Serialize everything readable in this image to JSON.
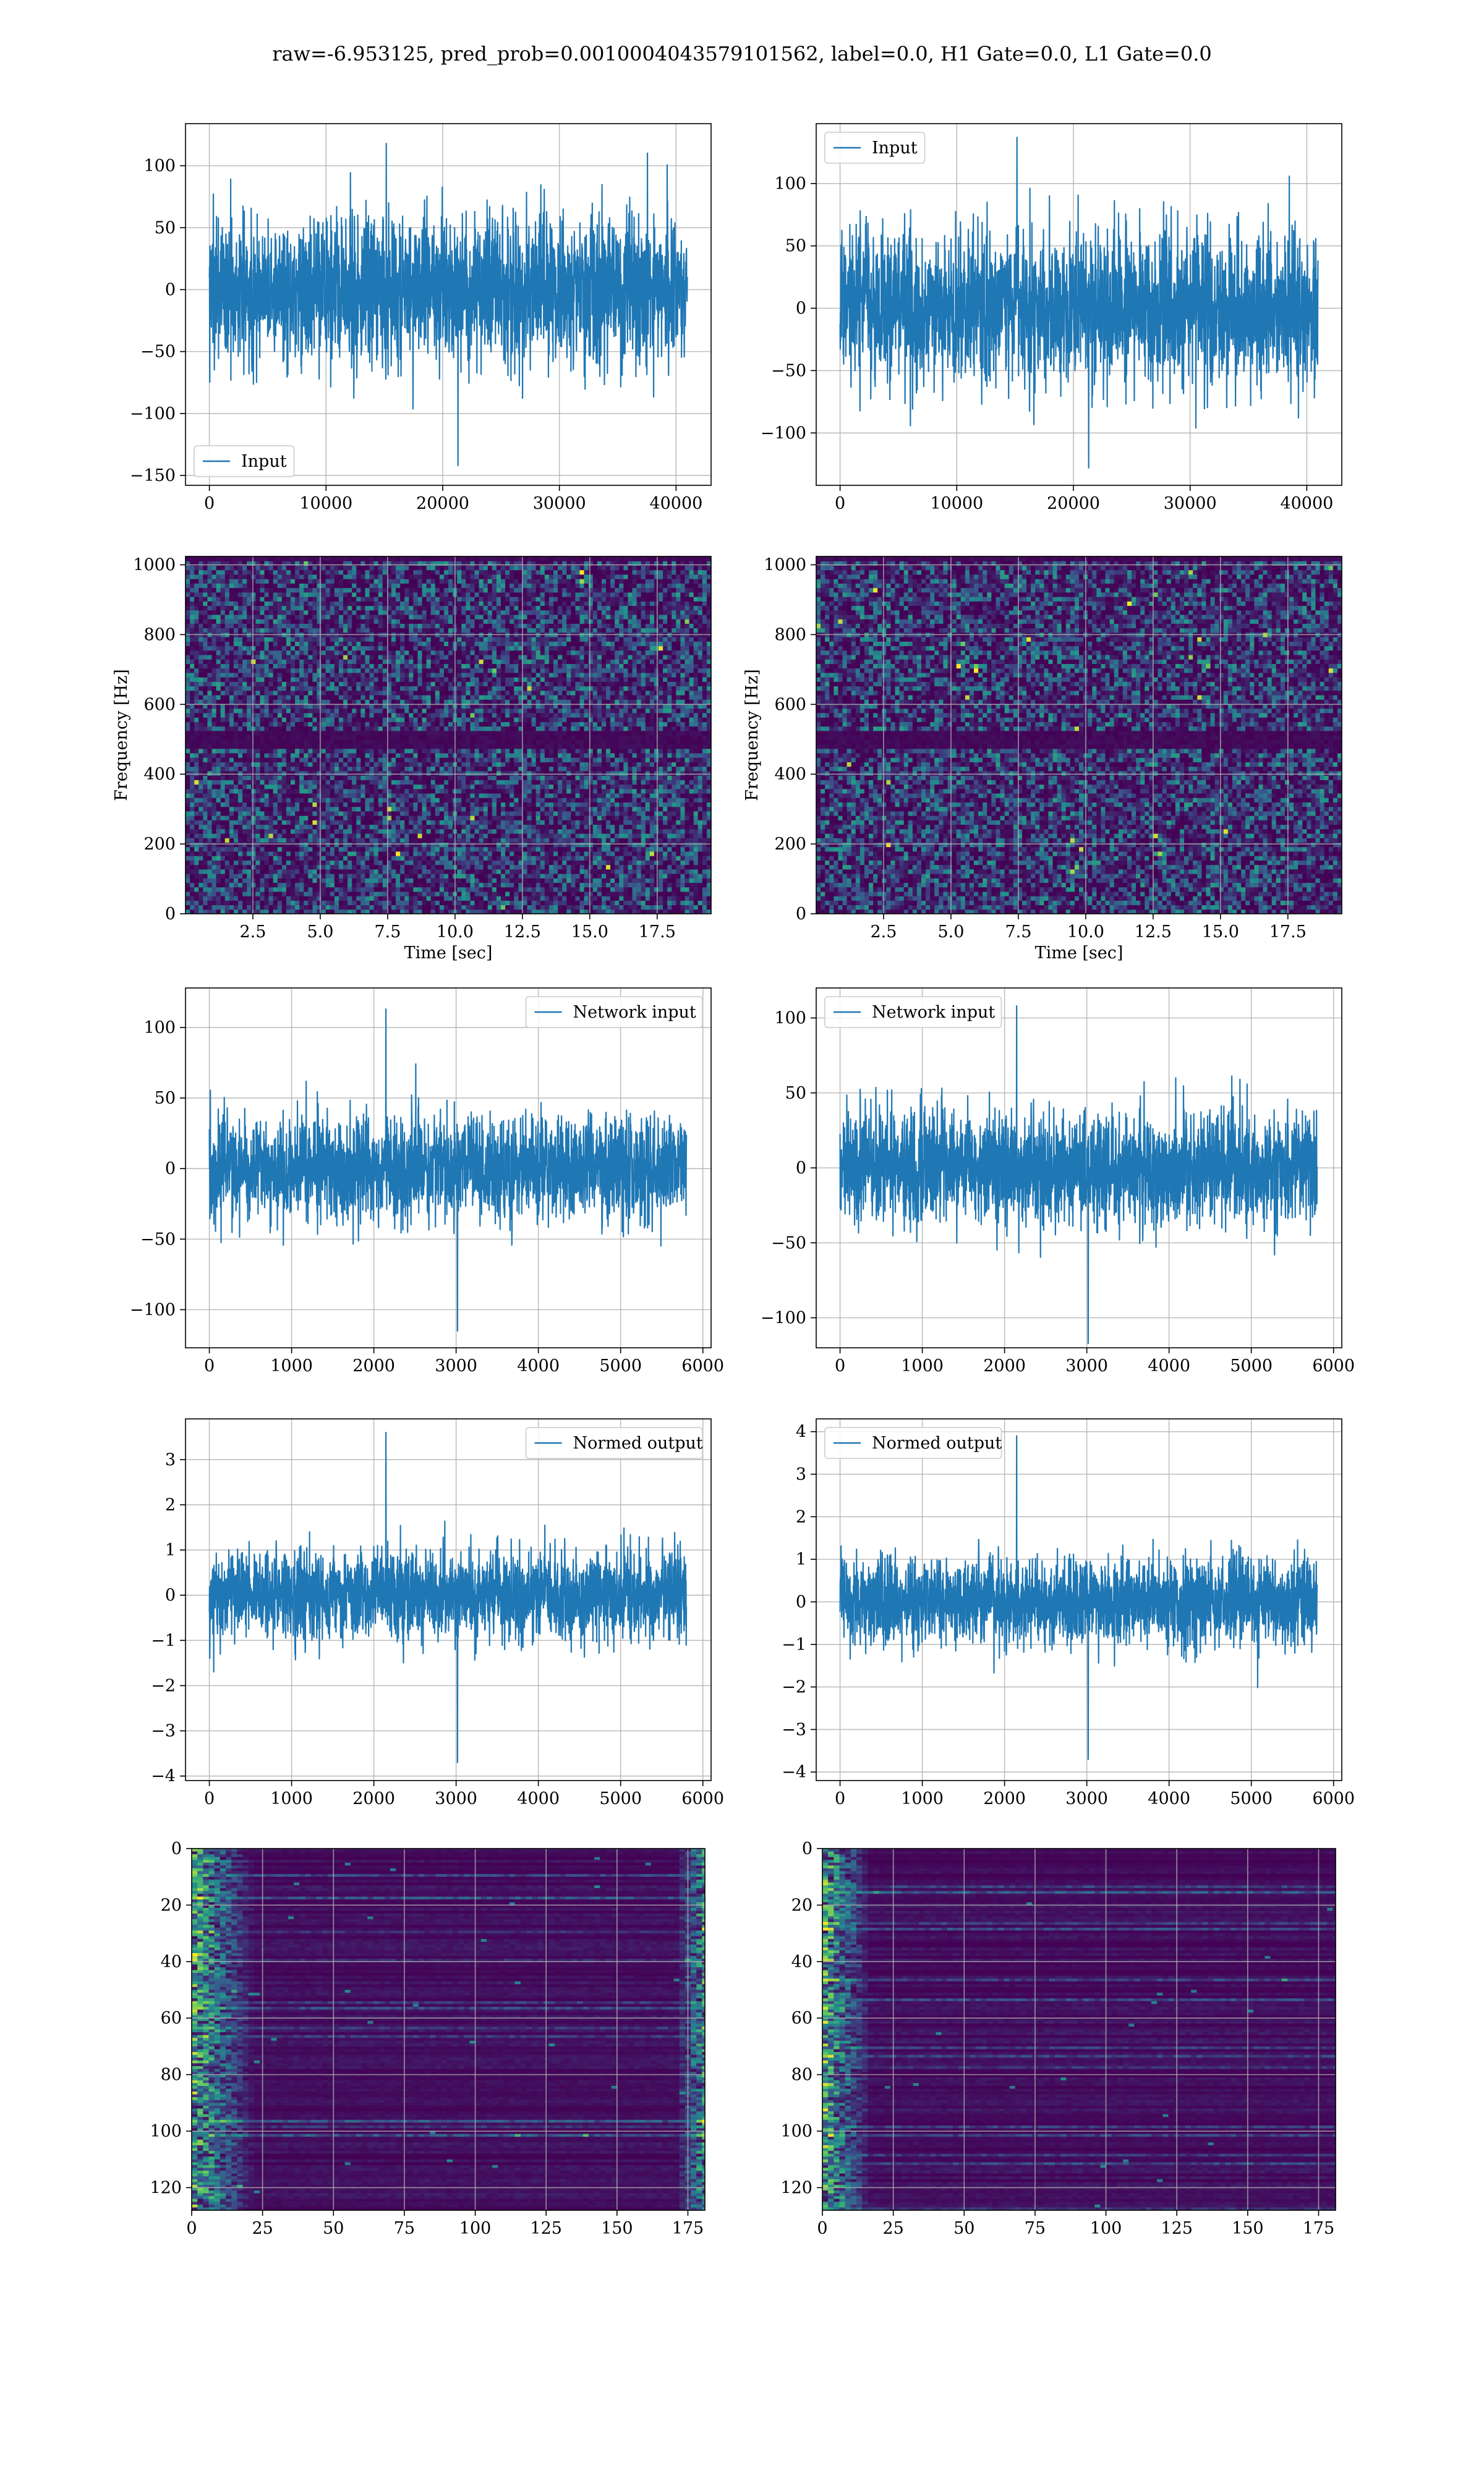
{
  "figure_title": "raw=-6.953125, pred_prob=0.0010004043579101562, label=0.0, H1 Gate=0.0, L1 Gate=0.0",
  "colors": {
    "series": "#1f77b4",
    "axis": "#000000",
    "grid": "#b0b0b0",
    "background": "#ffffff"
  },
  "chart_data": [
    {
      "id": "p1",
      "type": "line",
      "panel": "row1-left",
      "title": "",
      "xlabel": "",
      "ylabel": "",
      "xlim": [
        -2046,
        43000
      ],
      "ylim": [
        -158,
        134
      ],
      "xticks": [
        0,
        10000,
        20000,
        30000,
        40000
      ],
      "yticks": [
        -150,
        -100,
        -50,
        0,
        50,
        100
      ],
      "grid": true,
      "legend": {
        "entries": [
          "Input"
        ],
        "position": "lower-left"
      },
      "series": [
        {
          "name": "Input",
          "n_points": 40960,
          "x_range": [
            0,
            40960
          ],
          "envelope_typical": [
            -65,
            65
          ],
          "peaks": [
            118,
            -142
          ]
        }
      ]
    },
    {
      "id": "p2",
      "type": "line",
      "panel": "row1-right",
      "title": "",
      "xlabel": "",
      "ylabel": "",
      "xlim": [
        -2046,
        43000
      ],
      "ylim": [
        -142,
        148
      ],
      "xticks": [
        0,
        10000,
        20000,
        30000,
        40000
      ],
      "yticks": [
        -100,
        -50,
        0,
        50,
        100
      ],
      "grid": true,
      "legend": {
        "entries": [
          "Input"
        ],
        "position": "upper-left"
      },
      "series": [
        {
          "name": "Input",
          "n_points": 40960,
          "x_range": [
            0,
            40960
          ],
          "envelope_typical": [
            -65,
            65
          ],
          "peaks": [
            137,
            -128
          ]
        }
      ]
    },
    {
      "id": "p3",
      "type": "heatmap",
      "panel": "row2-left",
      "title": "",
      "xlabel": "Time [sec]",
      "ylabel": "Frequency [Hz]",
      "xlim": [
        0,
        19.5
      ],
      "ylim": [
        0,
        1024
      ],
      "xticks": [
        2.5,
        5.0,
        7.5,
        10.0,
        12.5,
        15.0,
        17.5
      ],
      "yticks": [
        0,
        200,
        400,
        600,
        800,
        1000
      ],
      "grid": true,
      "colormap": "viridis",
      "dark_bands_hz": [
        470,
        530,
        1010,
        1024
      ]
    },
    {
      "id": "p4",
      "type": "heatmap",
      "panel": "row2-right",
      "title": "",
      "xlabel": "Time [sec]",
      "ylabel": "Frequency [Hz]",
      "xlim": [
        0,
        19.5
      ],
      "ylim": [
        0,
        1024
      ],
      "xticks": [
        2.5,
        5.0,
        7.5,
        10.0,
        12.5,
        15.0,
        17.5
      ],
      "yticks": [
        0,
        200,
        400,
        600,
        800,
        1000
      ],
      "grid": true,
      "colormap": "viridis",
      "dark_bands_hz": [
        470,
        530,
        1010,
        1024
      ]
    },
    {
      "id": "p5",
      "type": "line",
      "panel": "row3-left",
      "title": "",
      "xlabel": "",
      "ylabel": "",
      "xlim": [
        -290,
        6100
      ],
      "ylim": [
        -127,
        128
      ],
      "xticks": [
        0,
        1000,
        2000,
        3000,
        4000,
        5000,
        6000
      ],
      "yticks": [
        -100,
        -50,
        0,
        50,
        100
      ],
      "grid": true,
      "legend": {
        "entries": [
          "Network input"
        ],
        "position": "upper-right"
      },
      "series": [
        {
          "name": "Network input",
          "n_points": 5800,
          "x_range": [
            0,
            5800
          ],
          "envelope_typical": [
            -40,
            40
          ],
          "peaks": [
            113,
            -115
          ]
        }
      ]
    },
    {
      "id": "p6",
      "type": "line",
      "panel": "row3-right",
      "title": "",
      "xlabel": "",
      "ylabel": "",
      "xlim": [
        -290,
        6100
      ],
      "ylim": [
        -120,
        120
      ],
      "xticks": [
        0,
        1000,
        2000,
        3000,
        4000,
        5000,
        6000
      ],
      "yticks": [
        -100,
        -50,
        0,
        50,
        100
      ],
      "grid": true,
      "legend": {
        "entries": [
          "Network input"
        ],
        "position": "upper-left"
      },
      "series": [
        {
          "name": "Network input",
          "n_points": 5800,
          "x_range": [
            0,
            5800
          ],
          "envelope_typical": [
            -40,
            40
          ],
          "peaks": [
            108,
            -117
          ]
        }
      ]
    },
    {
      "id": "p7",
      "type": "line",
      "panel": "row4-left",
      "title": "",
      "xlabel": "",
      "ylabel": "",
      "xlim": [
        -290,
        6100
      ],
      "ylim": [
        -4.1,
        3.9
      ],
      "xticks": [
        0,
        1000,
        2000,
        3000,
        4000,
        5000,
        6000
      ],
      "yticks": [
        -4,
        -3,
        -2,
        -1,
        0,
        1,
        2,
        3
      ],
      "grid": true,
      "legend": {
        "entries": [
          "Normed output"
        ],
        "position": "upper-right"
      },
      "series": [
        {
          "name": "Normed output",
          "n_points": 5800,
          "x_range": [
            0,
            5800
          ],
          "envelope_typical": [
            -1.1,
            1.1
          ],
          "peaks": [
            3.6,
            -3.7
          ]
        }
      ]
    },
    {
      "id": "p8",
      "type": "line",
      "panel": "row4-right",
      "title": "",
      "xlabel": "",
      "ylabel": "",
      "xlim": [
        -290,
        6100
      ],
      "ylim": [
        -4.2,
        4.3
      ],
      "xticks": [
        0,
        1000,
        2000,
        3000,
        4000,
        5000,
        6000
      ],
      "yticks": [
        -4,
        -3,
        -2,
        -1,
        0,
        1,
        2,
        3,
        4
      ],
      "grid": true,
      "legend": {
        "entries": [
          "Normed output"
        ],
        "position": "upper-left"
      },
      "series": [
        {
          "name": "Normed output",
          "n_points": 5800,
          "x_range": [
            0,
            5800
          ],
          "envelope_typical": [
            -1.1,
            1.1
          ],
          "peaks": [
            3.9,
            -3.7
          ]
        }
      ]
    },
    {
      "id": "p9",
      "type": "heatmap",
      "panel": "row5-left",
      "title": "",
      "xlabel": "",
      "ylabel": "",
      "xlim": [
        0,
        181
      ],
      "ylim": [
        0,
        128
      ],
      "y_inverted": true,
      "xticks": [
        0,
        25,
        50,
        75,
        100,
        125,
        150,
        175
      ],
      "yticks": [
        0,
        20,
        40,
        60,
        80,
        100,
        120
      ],
      "grid": true,
      "colormap": "viridis",
      "rows": 128,
      "cols": 181,
      "bright_columns": [
        [
          0,
          20
        ],
        [
          170,
          181
        ]
      ]
    },
    {
      "id": "p10",
      "type": "heatmap",
      "panel": "row5-right",
      "title": "",
      "xlabel": "",
      "ylabel": "",
      "xlim": [
        0,
        181
      ],
      "ylim": [
        0,
        128
      ],
      "y_inverted": true,
      "xticks": [
        0,
        25,
        50,
        75,
        100,
        125,
        150,
        175
      ],
      "yticks": [
        0,
        20,
        40,
        60,
        80,
        100,
        120
      ],
      "grid": true,
      "colormap": "viridis",
      "rows": 128,
      "cols": 181,
      "bright_columns": [
        [
          0,
          15
        ]
      ]
    }
  ]
}
